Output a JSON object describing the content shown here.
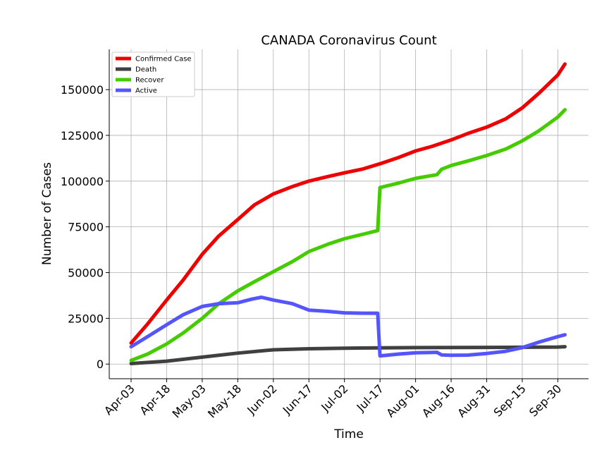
{
  "chart_data": {
    "type": "line",
    "title": "CANADA Coronavirus Count",
    "xlabel": "Time",
    "ylabel": "Number of Cases",
    "ylim": [
      -8000,
      172000
    ],
    "yticks": [
      0,
      25000,
      50000,
      75000,
      100000,
      125000,
      150000
    ],
    "x_tick_labels": [
      "Apr-03",
      "Apr-18",
      "May-03",
      "May-18",
      "Jun-02",
      "Jun-17",
      "Jul-02",
      "Jul-17",
      "Aug-01",
      "Aug-16",
      "Aug-31",
      "Sep-15",
      "Sep-30"
    ],
    "grid": true,
    "legend_position": "upper-left",
    "series": [
      {
        "name": "Confirmed Case",
        "color": "#ee0000",
        "x": [
          "Apr-03",
          "Apr-10",
          "Apr-18",
          "Apr-25",
          "May-03",
          "May-10",
          "May-18",
          "May-25",
          "Jun-02",
          "Jun-10",
          "Jun-17",
          "Jun-25",
          "Jul-02",
          "Jul-10",
          "Jul-17",
          "Jul-25",
          "Aug-01",
          "Aug-08",
          "Aug-16",
          "Aug-23",
          "Aug-31",
          "Sep-08",
          "Sep-15",
          "Sep-22",
          "Sep-30",
          "Oct-03"
        ],
        "values": [
          11500,
          22000,
          35000,
          46000,
          60000,
          70000,
          79000,
          87000,
          93000,
          97000,
          100000,
          102500,
          104500,
          106700,
          109500,
          113000,
          116500,
          119000,
          122500,
          126000,
          129500,
          134000,
          140000,
          148000,
          158000,
          164000
        ]
      },
      {
        "name": "Death",
        "color": "#404040",
        "x": [
          "Apr-03",
          "Apr-18",
          "May-03",
          "May-18",
          "Jun-02",
          "Jun-17",
          "Jul-02",
          "Jul-17",
          "Aug-01",
          "Aug-16",
          "Aug-31",
          "Sep-15",
          "Sep-30",
          "Oct-03"
        ],
        "values": [
          300,
          1600,
          3800,
          6000,
          7800,
          8400,
          8700,
          8850,
          9000,
          9080,
          9120,
          9180,
          9300,
          9500
        ]
      },
      {
        "name": "Recover",
        "color": "#44cc00",
        "x": [
          "Apr-03",
          "Apr-10",
          "Apr-18",
          "Apr-25",
          "May-03",
          "May-10",
          "May-18",
          "May-25",
          "Jun-02",
          "Jun-10",
          "Jun-17",
          "Jun-25",
          "Jul-02",
          "Jul-10",
          "Jul-16",
          "Jul-17",
          "Jul-25",
          "Aug-01",
          "Aug-10",
          "Aug-12",
          "Aug-16",
          "Aug-23",
          "Aug-31",
          "Sep-08",
          "Sep-15",
          "Sep-22",
          "Sep-30",
          "Oct-03"
        ],
        "values": [
          2000,
          5500,
          11000,
          17000,
          25000,
          33000,
          40000,
          45000,
          50500,
          56000,
          61500,
          65500,
          68500,
          71000,
          73000,
          96500,
          99000,
          101500,
          103500,
          106500,
          108500,
          111000,
          114000,
          117500,
          122000,
          127500,
          135000,
          139000
        ]
      },
      {
        "name": "Active",
        "color": "#5555ff",
        "x": [
          "Apr-03",
          "Apr-10",
          "Apr-18",
          "Apr-25",
          "May-03",
          "May-10",
          "May-18",
          "May-24",
          "May-28",
          "Jun-02",
          "Jun-10",
          "Jun-17",
          "Jun-25",
          "Jul-02",
          "Jul-10",
          "Jul-16",
          "Jul-17",
          "Jul-25",
          "Aug-01",
          "Aug-10",
          "Aug-12",
          "Aug-16",
          "Aug-23",
          "Aug-31",
          "Sep-08",
          "Sep-15",
          "Sep-22",
          "Sep-30",
          "Oct-03"
        ],
        "values": [
          9500,
          15000,
          21500,
          27000,
          31500,
          33000,
          33500,
          35500,
          36500,
          35000,
          33000,
          29500,
          28800,
          28000,
          27800,
          27800,
          4500,
          5500,
          6200,
          6400,
          5000,
          4800,
          4900,
          5800,
          7000,
          9000,
          12000,
          15000,
          16000
        ]
      }
    ]
  }
}
